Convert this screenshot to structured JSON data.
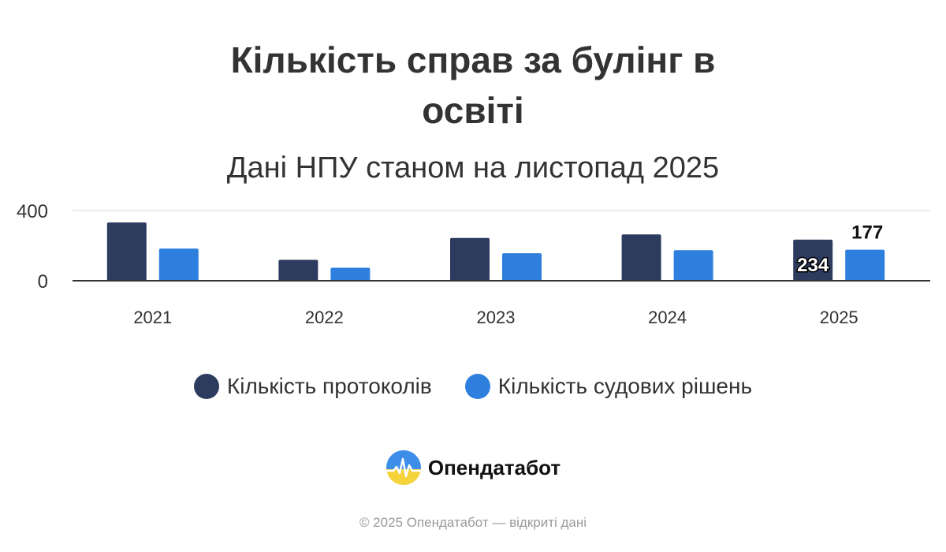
{
  "colors": {
    "series1": "#2d3b5e",
    "series2": "#2e7fde",
    "axis": "#333333",
    "grid": "#e6e6e6"
  },
  "chart_data": {
    "type": "bar",
    "title": "Кількість справ за булінг в освіті",
    "subtitle": "Дані НПУ станом на листопад 2025",
    "categories": [
      "2021",
      "2022",
      "2023",
      "2024",
      "2025"
    ],
    "series": [
      {
        "name": "Кількість протоколів",
        "values": [
          332,
          119,
          244,
          264,
          234
        ],
        "data_labels": [
          null,
          null,
          null,
          null,
          "234"
        ]
      },
      {
        "name": "Кількість судових рішень",
        "values": [
          183,
          74,
          157,
          174,
          177
        ],
        "data_labels": [
          null,
          null,
          null,
          null,
          "177"
        ]
      }
    ],
    "y_ticks": [
      "0",
      "400"
    ],
    "ylim": [
      0,
      400
    ],
    "grid": true,
    "legend_position": "bottom"
  },
  "brand": {
    "name": "Опендатабот",
    "logo_icon": "opendatabot-logo-icon"
  },
  "footer": {
    "text": "© 2025 Опендатабот — відкриті дані"
  }
}
